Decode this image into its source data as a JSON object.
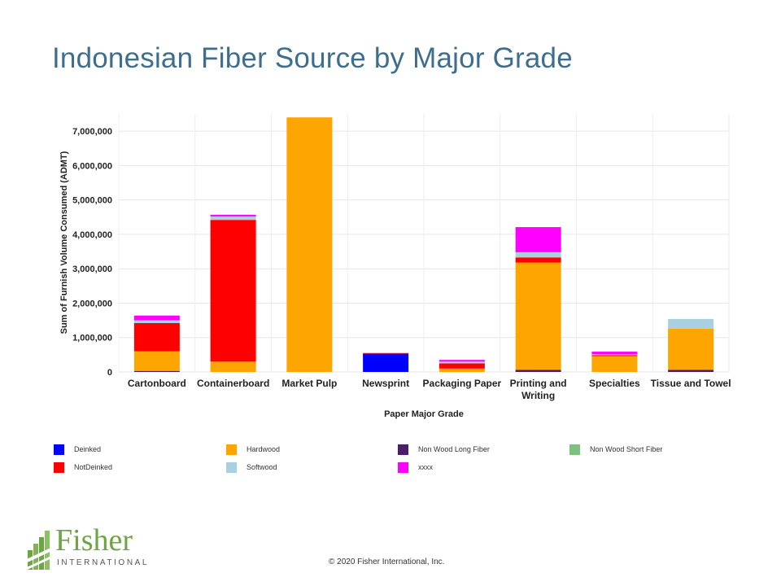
{
  "slide": {
    "title": "Indonesian Fiber Source by Major Grade",
    "copyright": "© 2020 Fisher International,  Inc."
  },
  "logo": {
    "name": "Fisher",
    "subtitle": "INTERNATIONAL",
    "color": "#6DA544"
  },
  "chart_data": {
    "type": "bar",
    "stacked": true,
    "title": "",
    "xlabel": "Paper Major Grade",
    "ylabel": "Sum of Furnish Volume Consumed (ADMT)",
    "ylim": [
      0,
      7500000
    ],
    "yticks": [
      0,
      1000000,
      2000000,
      3000000,
      4000000,
      5000000,
      6000000,
      7000000
    ],
    "ytick_labels": [
      "0",
      "1,000,000",
      "2,000,000",
      "3,000,000",
      "4,000,000",
      "5,000,000",
      "6,000,000",
      "7,000,000"
    ],
    "grid": true,
    "legend_position": "bottom",
    "categories": [
      "Cartonboard",
      "Containerboard",
      "Market Pulp",
      "Newsprint",
      "Packaging Paper",
      "Printing and\nWriting",
      "Specialties",
      "Tissue and Towel"
    ],
    "series": [
      {
        "name": "Deinked",
        "color": "#0000FF",
        "values": [
          0,
          0,
          0,
          530000,
          0,
          0,
          0,
          0
        ]
      },
      {
        "name": "Non Wood Long Fiber",
        "color": "#4B1D6B",
        "values": [
          30000,
          0,
          0,
          0,
          0,
          60000,
          0,
          60000
        ]
      },
      {
        "name": "Non Wood Short Fiber",
        "color": "#7FBF7F",
        "values": [
          0,
          0,
          0,
          0,
          0,
          0,
          0,
          0
        ]
      },
      {
        "name": "Hardwood",
        "color": "#FFA500",
        "values": [
          570000,
          300000,
          7400000,
          0,
          100000,
          3120000,
          460000,
          1200000
        ]
      },
      {
        "name": "NotDeinked",
        "color": "#FF0000",
        "values": [
          820000,
          4120000,
          0,
          20000,
          150000,
          150000,
          30000,
          0
        ]
      },
      {
        "name": "Softwood",
        "color": "#A8D0E0",
        "values": [
          80000,
          100000,
          0,
          0,
          50000,
          150000,
          30000,
          280000
        ]
      },
      {
        "name": "xxxx",
        "color": "#FF00FF",
        "values": [
          140000,
          50000,
          0,
          0,
          50000,
          730000,
          70000,
          0
        ]
      }
    ],
    "legend_order": [
      "Deinked",
      "Hardwood",
      "Non Wood Long Fiber",
      "Non Wood Short Fiber",
      "NotDeinked",
      "Softwood",
      "xxxx"
    ]
  }
}
